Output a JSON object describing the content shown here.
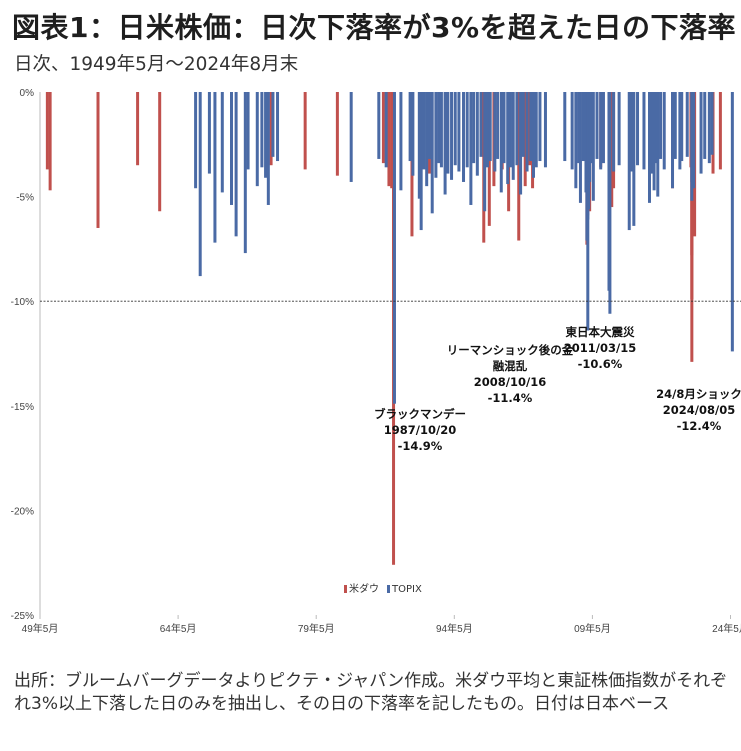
{
  "title": "図表1：日米株価：日次下落率が3%を超えた日の下落率",
  "subtitle": "日次、1949年5月～2024年8月末",
  "source_note": "出所：ブルームバーグデータよりピクテ・ジャパン作成。米ダウ平均と東証株価指数がそれぞれ3%以上下落した日のみを抽出し、その日の下落率を記したもの。日付は日本ベース",
  "colors": {
    "dow": "#c0504d",
    "topix": "#4a6aa5",
    "refline": "#333333",
    "axis": "#bbbbbb"
  },
  "chart_data": {
    "type": "bar",
    "ylim": [
      -25,
      0
    ],
    "yticks": [
      0,
      -5,
      -10,
      -15,
      -20,
      -25
    ],
    "ytick_labels": [
      "0%",
      "-5%",
      "-10%",
      "-15%",
      "-20%",
      "-25%"
    ],
    "xlim": [
      1949.4,
      2024.67
    ],
    "xticks": [
      1949.4,
      1964.4,
      1979.4,
      1994.4,
      2009.4,
      2024.4
    ],
    "xtick_labels": [
      "49年5月",
      "64年5月",
      "79年5月",
      "94年5月",
      "09年5月",
      "24年5月"
    ],
    "reference_line": -10,
    "legend": {
      "position": "bottom-center",
      "entries": [
        "米ダウ",
        "TOPIX"
      ]
    },
    "series": [
      {
        "name": "米ダウ",
        "color": "#c0504d",
        "points": [
          [
            1950.2,
            -3.7
          ],
          [
            1950.5,
            -4.7
          ],
          [
            1955.7,
            -6.5
          ],
          [
            1960.0,
            -3.5
          ],
          [
            1962.4,
            -5.7
          ],
          [
            1974.5,
            -3.5
          ],
          [
            1978.2,
            -3.7
          ],
          [
            1981.7,
            -4.0
          ],
          [
            1986.7,
            -3.4
          ],
          [
            1987.3,
            -4.5
          ],
          [
            1987.6,
            -4.6
          ],
          [
            1987.8,
            -3.8
          ],
          [
            1987.8,
            -8.0
          ],
          [
            1987.8,
            -22.6
          ],
          [
            1989.8,
            -6.9
          ],
          [
            1990.7,
            -3.4
          ],
          [
            1991.7,
            -3.9
          ],
          [
            1997.6,
            -7.2
          ],
          [
            1998.2,
            -6.4
          ],
          [
            1998.7,
            -4.5
          ],
          [
            1999.6,
            -3.7
          ],
          [
            2000.3,
            -5.7
          ],
          [
            2001.4,
            -7.1
          ],
          [
            2002.1,
            -4.5
          ],
          [
            2002.6,
            -3.5
          ],
          [
            2002.9,
            -4.6
          ],
          [
            2008.8,
            -7.3
          ],
          [
            2008.9,
            -5.9
          ],
          [
            2009.1,
            -5.7
          ],
          [
            2010.3,
            -3.6
          ],
          [
            2011.5,
            -5.5
          ],
          [
            2011.7,
            -4.6
          ],
          [
            2018.1,
            -4.6
          ],
          [
            2020.1,
            -3.6
          ],
          [
            2020.2,
            -7.8
          ],
          [
            2020.2,
            -9.9
          ],
          [
            2020.2,
            -12.9
          ],
          [
            2020.3,
            -6.3
          ],
          [
            2020.5,
            -6.9
          ],
          [
            2022.5,
            -3.9
          ],
          [
            2023.3,
            -3.7
          ]
        ]
      },
      {
        "name": "TOPIX",
        "color": "#4a6aa5",
        "points": [
          [
            1966.3,
            -4.6
          ],
          [
            1966.8,
            -8.8
          ],
          [
            1967.8,
            -3.9
          ],
          [
            1968.4,
            -7.2
          ],
          [
            1969.2,
            -4.8
          ],
          [
            1970.2,
            -5.4
          ],
          [
            1970.7,
            -6.9
          ],
          [
            1971.7,
            -7.7
          ],
          [
            1972.0,
            -3.7
          ],
          [
            1973.0,
            -4.5
          ],
          [
            1973.5,
            -3.6
          ],
          [
            1973.9,
            -4.1
          ],
          [
            1974.2,
            -5.4
          ],
          [
            1974.7,
            -3.1
          ],
          [
            1975.2,
            -3.3
          ],
          [
            1983.2,
            -4.3
          ],
          [
            1986.2,
            -3.2
          ],
          [
            1987.0,
            -3.6
          ],
          [
            1987.9,
            -14.9
          ],
          [
            1988.6,
            -4.7
          ],
          [
            1989.6,
            -3.3
          ],
          [
            1989.9,
            -4.0
          ],
          [
            1990.6,
            -5.1
          ],
          [
            1990.8,
            -6.6
          ],
          [
            1991.1,
            -3.7
          ],
          [
            1991.4,
            -4.5
          ],
          [
            1991.7,
            -3.2
          ],
          [
            1992.0,
            -5.8
          ],
          [
            1992.4,
            -4.1
          ],
          [
            1992.7,
            -3.4
          ],
          [
            1993.0,
            -3.6
          ],
          [
            1993.4,
            -4.9
          ],
          [
            1993.7,
            -3.9
          ],
          [
            1994.1,
            -4.2
          ],
          [
            1994.5,
            -3.5
          ],
          [
            1994.9,
            -3.8
          ],
          [
            1995.4,
            -4.3
          ],
          [
            1995.8,
            -3.6
          ],
          [
            1996.2,
            -5.4
          ],
          [
            1996.5,
            -3.4
          ],
          [
            1996.9,
            -4.0
          ],
          [
            1997.3,
            -3.1
          ],
          [
            1997.7,
            -5.7
          ],
          [
            1998.0,
            -3.6
          ],
          [
            1998.3,
            -3.3
          ],
          [
            1998.8,
            -3.8
          ],
          [
            1999.1,
            -3.2
          ],
          [
            1999.5,
            -4.8
          ],
          [
            1999.8,
            -3.4
          ],
          [
            2000.2,
            -4.4
          ],
          [
            2000.5,
            -3.6
          ],
          [
            2000.8,
            -4.2
          ],
          [
            2001.2,
            -3.5
          ],
          [
            2001.6,
            -4.9
          ],
          [
            2001.9,
            -3.1
          ],
          [
            2002.3,
            -3.8
          ],
          [
            2002.7,
            -3.3
          ],
          [
            2003.0,
            -4.1
          ],
          [
            2003.3,
            -3.6
          ],
          [
            2003.7,
            -3.3
          ],
          [
            2004.3,
            -3.6
          ],
          [
            2006.4,
            -3.3
          ],
          [
            2007.2,
            -3.7
          ],
          [
            2007.6,
            -4.6
          ],
          [
            2007.9,
            -3.4
          ],
          [
            2008.1,
            -5.3
          ],
          [
            2008.4,
            -3.3
          ],
          [
            2008.7,
            -4.8
          ],
          [
            2008.8,
            -7.1
          ],
          [
            2008.9,
            -6.1
          ],
          [
            2008.9,
            -11.4
          ],
          [
            2009.0,
            -5.6
          ],
          [
            2009.1,
            -4.3
          ],
          [
            2009.2,
            -3.4
          ],
          [
            2009.5,
            -5.2
          ],
          [
            2009.9,
            -3.2
          ],
          [
            2010.3,
            -3.7
          ],
          [
            2010.6,
            -3.4
          ],
          [
            2011.2,
            -3.8
          ],
          [
            2011.2,
            -9.5
          ],
          [
            2011.3,
            -10.6
          ],
          [
            2011.7,
            -3.8
          ],
          [
            2012.3,
            -3.5
          ],
          [
            2013.4,
            -6.6
          ],
          [
            2013.6,
            -3.8
          ],
          [
            2013.9,
            -6.4
          ],
          [
            2014.3,
            -3.5
          ],
          [
            2015.0,
            -3.7
          ],
          [
            2015.6,
            -5.3
          ],
          [
            2015.9,
            -3.9
          ],
          [
            2016.1,
            -4.7
          ],
          [
            2016.4,
            -3.4
          ],
          [
            2016.5,
            -5.0
          ],
          [
            2016.8,
            -3.2
          ],
          [
            2017.2,
            -3.7
          ],
          [
            2018.1,
            -4.6
          ],
          [
            2018.4,
            -3.2
          ],
          [
            2018.9,
            -3.7
          ],
          [
            2019.1,
            -3.3
          ],
          [
            2019.7,
            -3.1
          ],
          [
            2020.2,
            -5.2
          ],
          [
            2020.2,
            -4.3
          ],
          [
            2020.3,
            -3.4
          ],
          [
            2020.4,
            -4.6
          ],
          [
            2021.2,
            -3.9
          ],
          [
            2021.6,
            -3.2
          ],
          [
            2022.1,
            -3.4
          ],
          [
            2022.4,
            -3.0
          ],
          [
            2024.6,
            -12.4
          ]
        ]
      }
    ],
    "annotations": [
      {
        "lines": [
          "ブラックマンデー",
          "1987/10/20",
          "-14.9%"
        ],
        "x": 1987.8,
        "y": -14.9
      },
      {
        "lines": [
          "リーマンショック後の金",
          "融混乱",
          "2008/10/16",
          "-11.4%"
        ],
        "x": 2008.8,
        "y": -11.4
      },
      {
        "lines": [
          "東日本大震災",
          "2011/03/15",
          "-10.6%"
        ],
        "x": 2011.2,
        "y": -10.6
      },
      {
        "lines": [
          "24/8月ショック",
          "2024/08/05",
          "-12.4%"
        ],
        "x": 2024.6,
        "y": -12.4
      }
    ]
  }
}
